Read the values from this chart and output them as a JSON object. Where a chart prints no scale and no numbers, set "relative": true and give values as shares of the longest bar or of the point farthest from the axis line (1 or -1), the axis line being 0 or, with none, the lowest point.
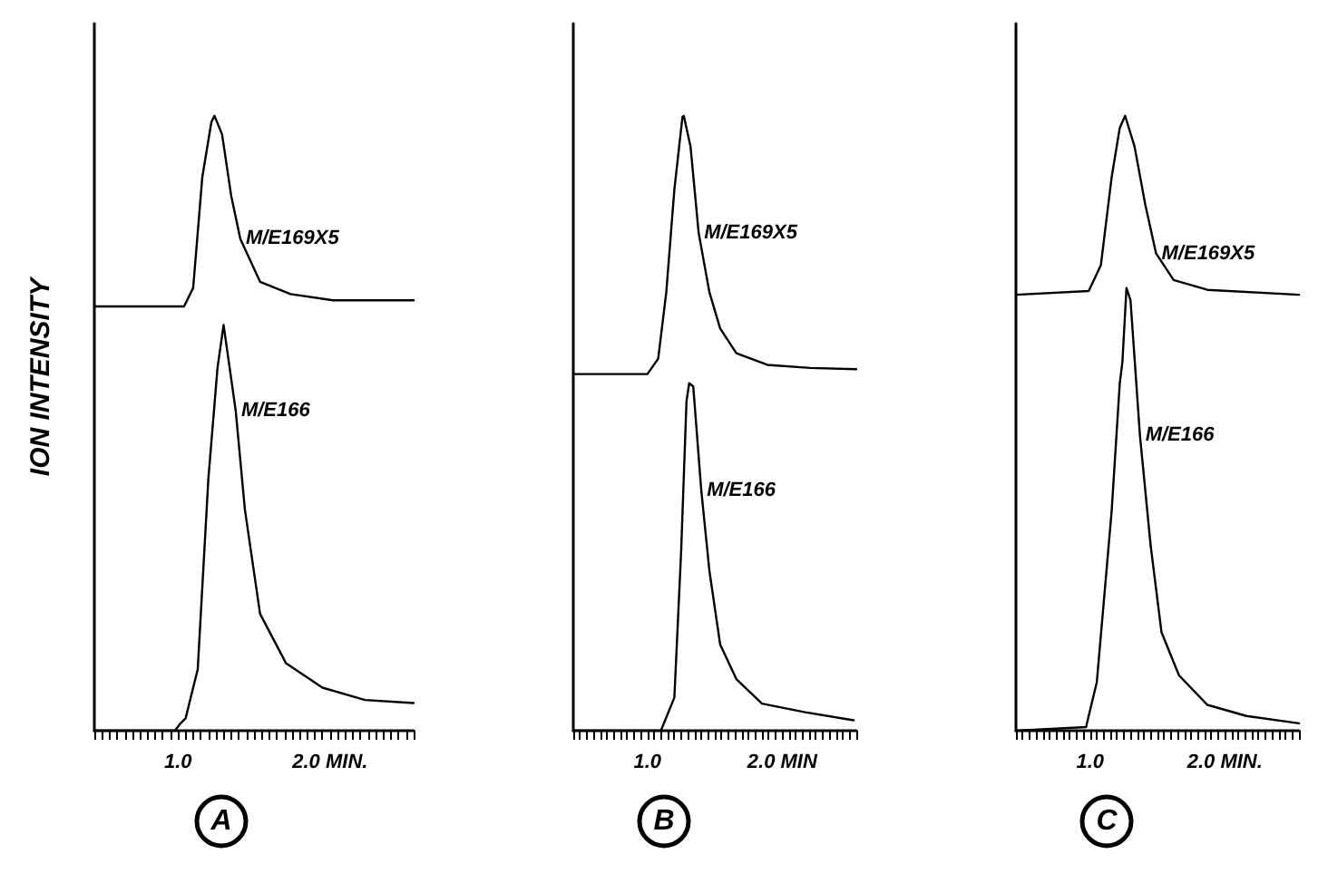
{
  "chart_data": [
    {
      "type": "line",
      "title": "A",
      "ylabel": "ION INTENSITY",
      "relative": true,
      "xlim": [
        0.45,
        2.55
      ],
      "xticks": [
        {
          "value": 0.45,
          "label": null
        },
        {
          "value": 0.5,
          "label": null
        },
        {
          "value": 0.55,
          "label": null
        },
        {
          "value": 0.6,
          "label": null
        },
        {
          "value": 0.65,
          "label": null
        },
        {
          "value": 0.7,
          "label": null
        },
        {
          "value": 0.75,
          "label": null
        },
        {
          "value": 0.8,
          "label": null
        },
        {
          "value": 0.85,
          "label": null
        },
        {
          "value": 0.9,
          "label": null
        },
        {
          "value": 0.95,
          "label": null
        },
        {
          "value": 1.0,
          "label": "1.0"
        },
        {
          "value": 1.05,
          "label": null
        },
        {
          "value": 1.1,
          "label": null
        },
        {
          "value": 1.15,
          "label": null
        },
        {
          "value": 1.2,
          "label": null
        },
        {
          "value": 1.25,
          "label": null
        },
        {
          "value": 1.3,
          "label": null
        },
        {
          "value": 1.35,
          "label": null
        },
        {
          "value": 1.4,
          "label": null
        },
        {
          "value": 1.45,
          "label": null
        },
        {
          "value": 1.5,
          "label": null
        },
        {
          "value": 1.55,
          "label": null
        },
        {
          "value": 1.6,
          "label": null
        },
        {
          "value": 1.65,
          "label": null
        },
        {
          "value": 1.7,
          "label": null
        },
        {
          "value": 1.75,
          "label": null
        },
        {
          "value": 1.8,
          "label": null
        },
        {
          "value": 1.85,
          "label": null
        },
        {
          "value": 1.9,
          "label": null
        },
        {
          "value": 1.95,
          "label": null
        },
        {
          "value": 2.0,
          "label": "2.0 MIN."
        },
        {
          "value": 2.05,
          "label": null
        },
        {
          "value": 2.1,
          "label": null
        },
        {
          "value": 2.15,
          "label": null
        },
        {
          "value": 2.2,
          "label": null
        },
        {
          "value": 2.25,
          "label": null
        },
        {
          "value": 2.3,
          "label": null
        },
        {
          "value": 2.35,
          "label": null
        },
        {
          "value": 2.4,
          "label": null
        },
        {
          "value": 2.45,
          "label": null
        },
        {
          "value": 2.5,
          "label": null
        },
        {
          "value": 2.55,
          "label": null
        }
      ],
      "grid": false,
      "legend": false,
      "marker": "none",
      "line_style": "solid",
      "series": [
        {
          "name": "M/E169X5",
          "color": "#000000",
          "x": [
            0.45,
            1.04,
            1.1,
            1.16,
            1.22,
            1.24,
            1.29,
            1.35,
            1.41,
            1.54,
            1.74,
            2.02,
            2.55
          ],
          "values": [
            0.69,
            0.69,
            0.72,
            0.9,
            0.99,
            1.0,
            0.97,
            0.87,
            0.8,
            0.73,
            0.71,
            0.7,
            0.7
          ]
        },
        {
          "name": "M/E166",
          "color": "#000000",
          "x": [
            0.45,
            0.98,
            1.01,
            1.05,
            1.13,
            1.2,
            1.26,
            1.3,
            1.38,
            1.44,
            1.54,
            1.71,
            1.95,
            2.23,
            2.55
          ],
          "values": [
            0,
            0,
            0.01,
            0.02,
            0.1,
            0.41,
            0.59,
            0.66,
            0.52,
            0.36,
            0.19,
            0.11,
            0.07,
            0.05,
            0.045
          ]
        }
      ]
    },
    {
      "type": "line",
      "title": "B",
      "relative": true,
      "xlim": [
        0.45,
        2.55
      ],
      "xticks": [
        {
          "value": 0.45,
          "label": null
        },
        {
          "value": 0.5,
          "label": null
        },
        {
          "value": 0.55,
          "label": null
        },
        {
          "value": 0.6,
          "label": null
        },
        {
          "value": 0.65,
          "label": null
        },
        {
          "value": 0.7,
          "label": null
        },
        {
          "value": 0.75,
          "label": null
        },
        {
          "value": 0.8,
          "label": null
        },
        {
          "value": 0.85,
          "label": null
        },
        {
          "value": 0.9,
          "label": null
        },
        {
          "value": 0.95,
          "label": null
        },
        {
          "value": 1.0,
          "label": "1.0"
        },
        {
          "value": 1.05,
          "label": null
        },
        {
          "value": 1.1,
          "label": null
        },
        {
          "value": 1.15,
          "label": null
        },
        {
          "value": 1.2,
          "label": null
        },
        {
          "value": 1.25,
          "label": null
        },
        {
          "value": 1.3,
          "label": null
        },
        {
          "value": 1.35,
          "label": null
        },
        {
          "value": 1.4,
          "label": null
        },
        {
          "value": 1.45,
          "label": null
        },
        {
          "value": 1.5,
          "label": null
        },
        {
          "value": 1.55,
          "label": null
        },
        {
          "value": 1.6,
          "label": null
        },
        {
          "value": 1.65,
          "label": null
        },
        {
          "value": 1.7,
          "label": null
        },
        {
          "value": 1.75,
          "label": null
        },
        {
          "value": 1.8,
          "label": null
        },
        {
          "value": 1.85,
          "label": null
        },
        {
          "value": 1.9,
          "label": null
        },
        {
          "value": 1.95,
          "label": null
        },
        {
          "value": 2.0,
          "label": "2.0 MIN"
        },
        {
          "value": 2.05,
          "label": null
        },
        {
          "value": 2.1,
          "label": null
        },
        {
          "value": 2.15,
          "label": null
        },
        {
          "value": 2.2,
          "label": null
        },
        {
          "value": 2.25,
          "label": null
        },
        {
          "value": 2.3,
          "label": null
        },
        {
          "value": 2.35,
          "label": null
        },
        {
          "value": 2.4,
          "label": null
        },
        {
          "value": 2.45,
          "label": null
        },
        {
          "value": 2.5,
          "label": null
        },
        {
          "value": 2.55,
          "label": null
        }
      ],
      "grid": false,
      "legend": false,
      "marker": "none",
      "line_style": "solid",
      "series": [
        {
          "name": "M/E169X5",
          "color": "#000000",
          "x": [
            0.45,
            1.0,
            1.08,
            1.14,
            1.2,
            1.26,
            1.27,
            1.32,
            1.38,
            1.46,
            1.54,
            1.66,
            1.89,
            2.21,
            2.55
          ],
          "values": [
            0.58,
            0.58,
            0.605,
            0.713,
            0.88,
            0.998,
            1.0,
            0.95,
            0.81,
            0.713,
            0.654,
            0.614,
            0.595,
            0.59,
            0.588
          ]
        },
        {
          "name": "M/E166",
          "color": "#000000",
          "x": [
            0.45,
            1.1,
            1.2,
            1.25,
            1.29,
            1.31,
            1.34,
            1.4,
            1.46,
            1.54,
            1.66,
            1.85,
            2.17,
            2.53
          ],
          "values": [
            0,
            0,
            0.054,
            0.29,
            0.536,
            0.565,
            0.56,
            0.39,
            0.26,
            0.14,
            0.084,
            0.044,
            0.03,
            0.017
          ]
        }
      ]
    },
    {
      "type": "line",
      "title": "C",
      "relative": true,
      "xlim": [
        0.45,
        2.55
      ],
      "xticks": [
        {
          "value": 0.45,
          "label": null
        },
        {
          "value": 0.5,
          "label": null
        },
        {
          "value": 0.55,
          "label": null
        },
        {
          "value": 0.6,
          "label": null
        },
        {
          "value": 0.65,
          "label": null
        },
        {
          "value": 0.7,
          "label": null
        },
        {
          "value": 0.75,
          "label": null
        },
        {
          "value": 0.8,
          "label": null
        },
        {
          "value": 0.85,
          "label": null
        },
        {
          "value": 0.9,
          "label": null
        },
        {
          "value": 0.95,
          "label": null
        },
        {
          "value": 1.0,
          "label": "1.0"
        },
        {
          "value": 1.05,
          "label": null
        },
        {
          "value": 1.1,
          "label": null
        },
        {
          "value": 1.15,
          "label": null
        },
        {
          "value": 1.2,
          "label": null
        },
        {
          "value": 1.25,
          "label": null
        },
        {
          "value": 1.3,
          "label": null
        },
        {
          "value": 1.35,
          "label": null
        },
        {
          "value": 1.4,
          "label": null
        },
        {
          "value": 1.45,
          "label": null
        },
        {
          "value": 1.5,
          "label": null
        },
        {
          "value": 1.55,
          "label": null
        },
        {
          "value": 1.6,
          "label": null
        },
        {
          "value": 1.65,
          "label": null
        },
        {
          "value": 1.7,
          "label": null
        },
        {
          "value": 1.75,
          "label": null
        },
        {
          "value": 1.8,
          "label": null
        },
        {
          "value": 1.85,
          "label": null
        },
        {
          "value": 1.9,
          "label": null
        },
        {
          "value": 1.95,
          "label": null
        },
        {
          "value": 2.0,
          "label": "2.0 MIN."
        },
        {
          "value": 2.05,
          "label": null
        },
        {
          "value": 2.1,
          "label": null
        },
        {
          "value": 2.15,
          "label": null
        },
        {
          "value": 2.2,
          "label": null
        },
        {
          "value": 2.25,
          "label": null
        },
        {
          "value": 2.3,
          "label": null
        },
        {
          "value": 2.35,
          "label": null
        },
        {
          "value": 2.4,
          "label": null
        },
        {
          "value": 2.45,
          "label": null
        },
        {
          "value": 2.5,
          "label": null
        },
        {
          "value": 2.55,
          "label": null
        }
      ],
      "grid": false,
      "legend": false,
      "marker": "none",
      "line_style": "solid",
      "series": [
        {
          "name": "M/E169X5",
          "color": "#000000",
          "x": [
            0.45,
            0.99,
            1.08,
            1.16,
            1.22,
            1.26,
            1.33,
            1.41,
            1.49,
            1.62,
            1.87,
            2.55
          ],
          "values": [
            0.709,
            0.715,
            0.757,
            0.9,
            0.98,
            1.0,
            0.95,
            0.855,
            0.776,
            0.733,
            0.717,
            0.709
          ]
        },
        {
          "name": "M/E166",
          "color": "#000000",
          "x": [
            0.45,
            0.97,
            1.05,
            1.16,
            1.22,
            1.24,
            1.27,
            1.3,
            1.37,
            1.45,
            1.53,
            1.66,
            1.87,
            2.16,
            2.55
          ],
          "values": [
            0,
            0.006,
            0.079,
            0.357,
            0.564,
            0.6,
            0.72,
            0.7,
            0.48,
            0.3,
            0.16,
            0.09,
            0.042,
            0.024,
            0.012
          ]
        }
      ]
    }
  ]
}
